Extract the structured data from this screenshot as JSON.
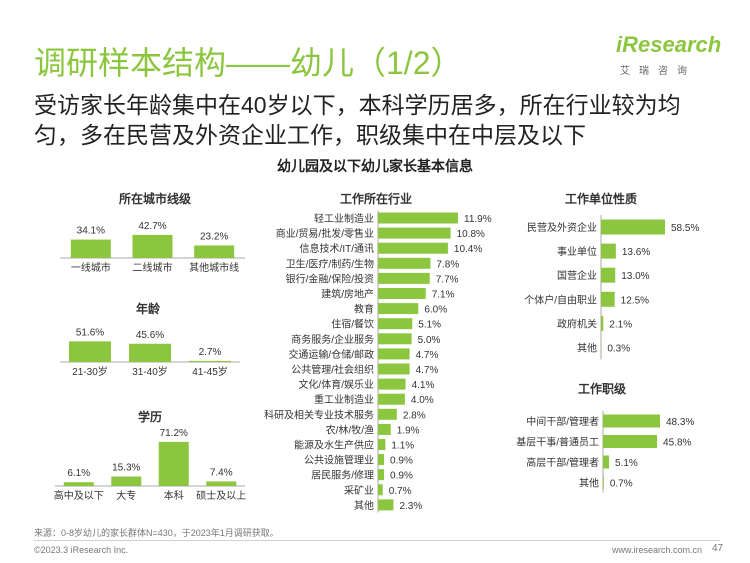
{
  "header": {
    "title": "调研样本结构——幼儿（1/2）",
    "subtitle": "受访家长年龄集中在40岁以下，本科学历居多，所在行业较为均匀，多在民营及外资企业工作，职级集中在中层及以下",
    "brand": "iResearch",
    "brand_cn": "艾瑞咨询",
    "main_chart_title": "幼儿园及以下幼儿家长基本信息"
  },
  "footer": {
    "source": "来源：0-8岁幼儿的家长群体N=430，于2023年1月调研获取。",
    "copyright": "©2023.3 iResearch Inc.",
    "website": "www.iresearch.com.cn",
    "page": "47"
  },
  "colors": {
    "accent": "#8cc63f",
    "text": "#333333",
    "axis": "#aaaaaa"
  },
  "chart_data": [
    {
      "id": "city",
      "type": "bar",
      "title": "所在城市线级",
      "categories": [
        "一线城市",
        "二线城市",
        "其他城市线"
      ],
      "values": [
        34.1,
        42.7,
        23.2
      ],
      "unit": "%"
    },
    {
      "id": "age",
      "type": "bar",
      "title": "年龄",
      "categories": [
        "21-30岁",
        "31-40岁",
        "41-45岁"
      ],
      "values": [
        51.6,
        45.6,
        2.7
      ],
      "unit": "%"
    },
    {
      "id": "edu",
      "type": "bar",
      "title": "学历",
      "categories": [
        "高中及以下",
        "大专",
        "本科",
        "硕士及以上"
      ],
      "values": [
        6.1,
        15.3,
        71.2,
        7.4
      ],
      "unit": "%"
    },
    {
      "id": "industry",
      "type": "bar",
      "orientation": "horizontal",
      "title": "工作所在行业",
      "categories": [
        "轻工业制造业",
        "商业/贸易/批发/零售业",
        "信息技术/IT/通讯",
        "卫生/医疗/制药/生物",
        "银行/金融/保险/投资",
        "建筑/房地产",
        "教育",
        "住宿/餐饮",
        "商务服务/企业服务",
        "交通运输/仓储/邮政",
        "公共管理/社会组织",
        "文化/体育/娱乐业",
        "重工业制造业",
        "科研及相关专业技术服务",
        "农/林/牧/渔",
        "能源及水生产供应",
        "公共设施管理业",
        "居民服务/修理",
        "采矿业",
        "其他"
      ],
      "values": [
        11.9,
        10.8,
        10.4,
        7.8,
        7.7,
        7.1,
        6.0,
        5.1,
        5.0,
        4.7,
        4.7,
        4.1,
        4.0,
        2.8,
        1.9,
        1.1,
        0.9,
        0.9,
        0.7,
        2.3
      ],
      "unit": "%"
    },
    {
      "id": "employer",
      "type": "bar",
      "orientation": "horizontal",
      "title": "工作单位性质",
      "categories": [
        "民营及外资企业",
        "事业单位",
        "国营企业",
        "个体户/自由职业",
        "政府机关",
        "其他"
      ],
      "values": [
        58.5,
        13.6,
        13.0,
        12.5,
        2.1,
        0.3
      ],
      "unit": "%"
    },
    {
      "id": "level",
      "type": "bar",
      "orientation": "horizontal",
      "title": "工作职级",
      "categories": [
        "中间干部/管理者",
        "基层干事/普通员工",
        "高层干部/管理者",
        "其他"
      ],
      "values": [
        48.3,
        45.8,
        5.1,
        0.7
      ],
      "unit": "%"
    }
  ]
}
